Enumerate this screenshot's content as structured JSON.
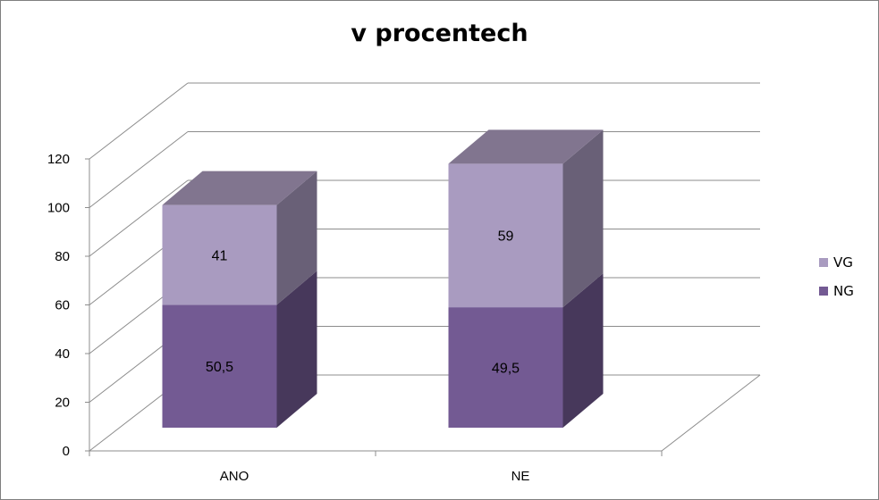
{
  "chart_data": {
    "type": "bar",
    "stacked": true,
    "three_d": true,
    "title": "v procentech",
    "categories": [
      "ANO",
      "NE"
    ],
    "series": [
      {
        "name": "NG",
        "values": [
          50.5,
          49.5
        ],
        "labels": [
          "50,5",
          "49,5"
        ],
        "color": "#735a93"
      },
      {
        "name": "VG",
        "values": [
          41,
          59
        ],
        "labels": [
          "41",
          "59"
        ],
        "color": "#a99bc0"
      }
    ],
    "ylim": [
      0,
      120
    ],
    "yticks": [
      0,
      20,
      40,
      60,
      80,
      100,
      120
    ],
    "grid": true,
    "legend": "right",
    "legend_order": [
      "VG",
      "NG"
    ]
  }
}
